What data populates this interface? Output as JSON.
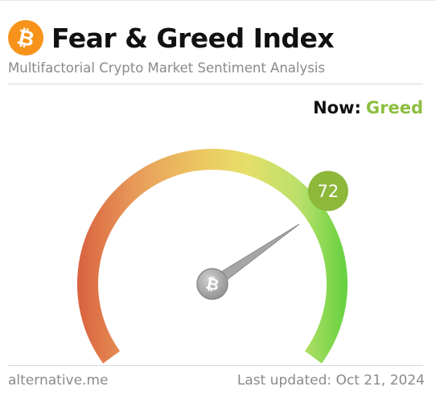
{
  "header": {
    "logo_icon": "bitcoin-icon",
    "title": "Fear & Greed Index",
    "subtitle": "Multifactorial Crypto Market Sentiment Analysis"
  },
  "status": {
    "now_label": "Now:",
    "now_value": "Greed",
    "now_color": "#8cbf3f"
  },
  "gauge": {
    "value": 72,
    "value_text": "72",
    "min": 0,
    "max": 100,
    "badge_color": "#8db83a",
    "needle_icon": "bitcoin-icon",
    "gradient_colors": [
      "#d9603f",
      "#e89c5a",
      "#ecc761",
      "#e6df6a",
      "#b8e06a",
      "#5fd03c"
    ]
  },
  "footer": {
    "source": "alternative.me",
    "last_updated": "Last updated: Oct 21, 2024"
  }
}
